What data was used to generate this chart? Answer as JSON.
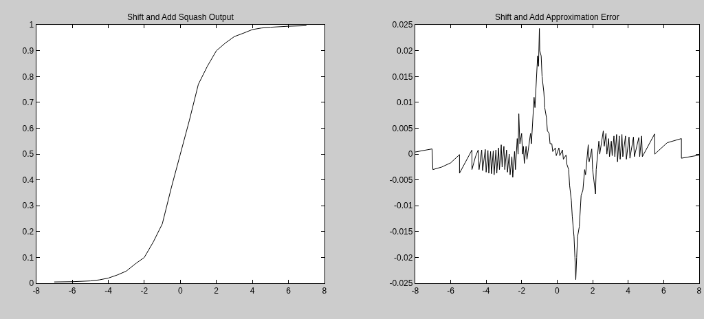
{
  "chart_data": [
    {
      "type": "line",
      "title": "Shift and Add Squash Output",
      "color": "#000000",
      "x": [
        -7,
        -6,
        -5,
        -4.5,
        -4,
        -3.5,
        -3,
        -2.5,
        -2,
        -1.5,
        -1,
        -0.5,
        0,
        0.5,
        1,
        1.5,
        2,
        2.5,
        3,
        3.5,
        4,
        4.5,
        5,
        6,
        7
      ],
      "values": [
        0.005,
        0.006,
        0.009,
        0.013,
        0.02,
        0.032,
        0.047,
        0.075,
        0.1,
        0.16,
        0.23,
        0.37,
        0.5,
        0.63,
        0.77,
        0.84,
        0.9,
        0.93,
        0.955,
        0.968,
        0.982,
        0.988,
        0.991,
        0.995,
        0.997
      ],
      "xlim": [
        -8,
        8
      ],
      "ylim": [
        0,
        1
      ],
      "xticks": [
        -8,
        -6,
        -4,
        -2,
        0,
        2,
        4,
        6,
        8
      ],
      "yticks": [
        0,
        0.1,
        0.2,
        0.3,
        0.4,
        0.5,
        0.6,
        0.7,
        0.8,
        0.9,
        1
      ]
    },
    {
      "type": "line",
      "title": "Shift and Add Approximation Error",
      "color": "#000000",
      "x": [
        -8,
        -7.05,
        -7.0,
        -6.5,
        -6,
        -5.5,
        -5.5,
        -4.8,
        -4.8,
        -4.6,
        -4.45,
        -4.4,
        -4.25,
        -4.2,
        -4.05,
        -4.0,
        -3.9,
        -3.85,
        -3.75,
        -3.7,
        -3.6,
        -3.55,
        -3.45,
        -3.4,
        -3.3,
        -3.25,
        -3.15,
        -3.1,
        -3.0,
        -2.95,
        -2.85,
        -2.8,
        -2.7,
        -2.65,
        -2.55,
        -2.5,
        -2.4,
        -2.35,
        -2.25,
        -2.2,
        -2.16,
        -2.1,
        -2.0,
        -1.95,
        -1.9,
        -1.85,
        -1.75,
        -1.7,
        -1.5,
        -1.45,
        -1.3,
        -1.25,
        -1.1,
        -1.05,
        -1.0,
        -0.98,
        -0.9,
        -0.85,
        -0.75,
        -0.7,
        -0.6,
        -0.55,
        -0.45,
        -0.4,
        -0.3,
        -0.25,
        -0.1,
        -0.05,
        0.1,
        0.15,
        0.3,
        0.35,
        0.5,
        0.55,
        0.65,
        0.7,
        0.8,
        0.85,
        0.95,
        1.0,
        1.05,
        1.1,
        1.15,
        1.25,
        1.35,
        1.45,
        1.55,
        1.6,
        1.75,
        1.8,
        1.95,
        2.0,
        2.16,
        2.2,
        2.35,
        2.4,
        2.6,
        2.65,
        2.75,
        2.8,
        2.9,
        2.95,
        3.05,
        3.1,
        3.2,
        3.25,
        3.35,
        3.4,
        3.5,
        3.55,
        3.65,
        3.7,
        3.85,
        3.9,
        4.05,
        4.1,
        4.3,
        4.35,
        4.6,
        4.65,
        4.76,
        4.8,
        5.49,
        5.5,
        6.2,
        7.0,
        7.0,
        8
      ],
      "values": [
        0.0004,
        0.001,
        -0.003,
        -0.0025,
        -0.0017,
        -0.0001,
        -0.0037,
        0.0008,
        -0.003,
        -0.0005,
        0.0008,
        -0.003,
        0.0008,
        -0.0032,
        0.0009,
        -0.0035,
        0.0007,
        -0.0037,
        0.0005,
        -0.0038,
        0.0006,
        -0.004,
        0.0008,
        -0.0037,
        0.0012,
        -0.003,
        0.0018,
        -0.0025,
        0.0015,
        -0.003,
        0.0008,
        -0.0035,
        0.0,
        -0.004,
        -0.0005,
        -0.0045,
        0.0005,
        -0.003,
        0.003,
        0.0,
        0.0078,
        0.002,
        0.004,
        0.0,
        0.0015,
        -0.0018,
        0.0015,
        -0.001,
        0.004,
        0.002,
        0.011,
        0.009,
        0.019,
        0.017,
        0.0243,
        0.02,
        0.019,
        0.015,
        0.012,
        0.009,
        0.007,
        0.0045,
        0.004,
        0.002,
        0.002,
        0.0005,
        0.0012,
        -0.0003,
        0.0012,
        -0.0003,
        0.0008,
        -0.001,
        -0.0002,
        -0.002,
        -0.003,
        -0.006,
        -0.009,
        -0.012,
        -0.016,
        -0.02,
        -0.0243,
        -0.02,
        -0.016,
        -0.014,
        -0.008,
        -0.007,
        -0.003,
        -0.004,
        0.0018,
        -0.0015,
        0.001,
        -0.003,
        -0.0077,
        -0.003,
        0.0025,
        0.0,
        0.0045,
        0.0015,
        0.004,
        0.0,
        0.003,
        -0.0005,
        0.0025,
        -0.0003,
        0.0035,
        -0.0005,
        0.0038,
        -0.0015,
        0.0035,
        -0.001,
        0.0038,
        -0.0005,
        0.0035,
        -0.001,
        0.0033,
        -0.0008,
        0.0033,
        -0.0005,
        0.0032,
        -0.0005,
        0.0035,
        -0.0005,
        0.0039,
        0.0,
        0.0022,
        0.003,
        -0.0008,
        -0.0002
      ],
      "xlim": [
        -8,
        8
      ],
      "ylim": [
        -0.025,
        0.025
      ],
      "xticks": [
        -8,
        -6,
        -4,
        -2,
        0,
        2,
        4,
        6,
        8
      ],
      "yticks": [
        -0.025,
        -0.02,
        -0.015,
        -0.01,
        -0.005,
        0,
        0.005,
        0.01,
        0.015,
        0.02,
        0.025
      ]
    }
  ]
}
